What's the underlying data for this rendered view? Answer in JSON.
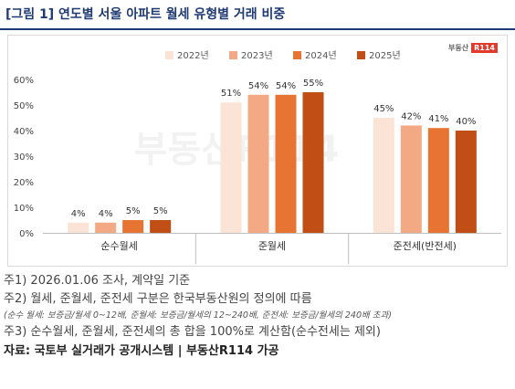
{
  "figure": {
    "title": "[그림 1] 연도별 서울 아파트 월세 유형별 거래 비중",
    "logo_text": "부동산",
    "logo_box": "R114",
    "watermark": "부동산R114"
  },
  "notes": {
    "note1": "주1) 2026.01.06 조사, 계약일 기준",
    "note2": "주2) 월세, 준월세, 준전세 구분은 한국부동산원의 정의에 따름",
    "note2_detail": "(순수 월세: 보증금/월세 0~12배, 준월세: 보증금/월세의 12~240배, 준전세: 보증금/월세의 240배 초과)",
    "note3": "주3) 순수월세, 준월세, 준전세의 총 합을 100%로 계산함(순수전세는 제외)",
    "source": "자료: 국토부 실거래가 공개시스템 | 부동산R114 가공"
  },
  "chart_data": {
    "type": "bar",
    "categories": [
      "순수월세",
      "준월세",
      "준전세(반전세)"
    ],
    "series": [
      {
        "name": "2022년",
        "values": [
          4,
          51,
          45
        ],
        "color": "#fbe3d6"
      },
      {
        "name": "2023년",
        "values": [
          4,
          54,
          42
        ],
        "color": "#f3a983"
      },
      {
        "name": "2024년",
        "values": [
          5,
          54,
          41
        ],
        "color": "#e87433"
      },
      {
        "name": "2025년",
        "values": [
          5,
          55,
          40
        ],
        "color": "#c14e15"
      }
    ],
    "value_labels": [
      [
        "4%",
        "51%",
        "45%"
      ],
      [
        "4%",
        "54%",
        "42%"
      ],
      [
        "5%",
        "54%",
        "41%"
      ],
      [
        "5%",
        "55%",
        "40%"
      ]
    ],
    "yticks": [
      "0%",
      "10%",
      "20%",
      "30%",
      "40%",
      "50%",
      "60%"
    ],
    "ylim": [
      0,
      60
    ],
    "grid": false,
    "legend": "top"
  }
}
